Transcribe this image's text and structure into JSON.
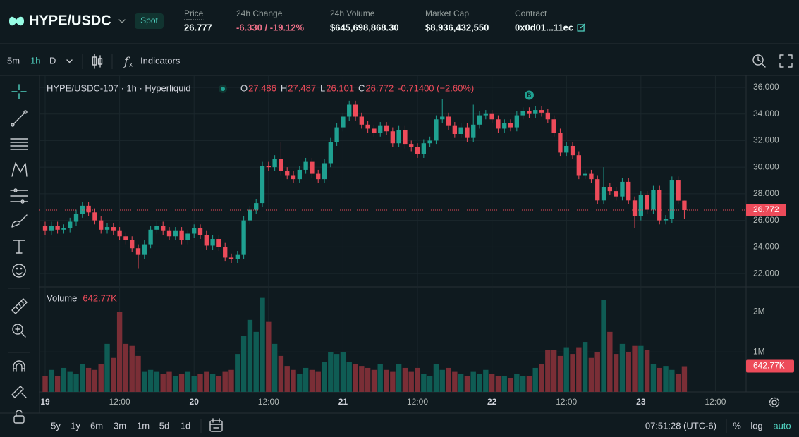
{
  "header": {
    "pair": "HYPE/USDC",
    "badge": "Spot",
    "stats": [
      {
        "label": "Price",
        "value": "26.777"
      },
      {
        "label": "24h Change",
        "value": "-6.330 / -19.12%"
      },
      {
        "label": "24h Volume",
        "value": "$645,698,868.30"
      },
      {
        "label": "Market Cap",
        "value": "$8,936,432,550"
      },
      {
        "label": "Contract",
        "value": "0x0d01...11ec"
      }
    ]
  },
  "toolbar": {
    "intervals": [
      "5m",
      "1h",
      "D"
    ],
    "indicators": "Indicators"
  },
  "bottom_bar": {
    "ranges": [
      "5y",
      "1y",
      "6m",
      "3m",
      "1m",
      "5d",
      "1d"
    ],
    "clock": "07:51:28 (UTC-6)",
    "options": [
      "%",
      "log",
      "auto"
    ]
  },
  "chart_data": {
    "type": "candlestick",
    "title": "HYPE/USDC-107 · 1h · Hyperliquid",
    "legend": {
      "labels": [
        "O",
        "H",
        "L",
        "C"
      ],
      "change": "-0.71400 (−2.60%)"
    },
    "up_color": "#1fa191",
    "down_color": "#ed4b5a",
    "grid": true,
    "last_price_line": true,
    "x": [
      0,
      1,
      2,
      3,
      4,
      5,
      6,
      7,
      8,
      9,
      10,
      11,
      12,
      13,
      14,
      15,
      16,
      17,
      18,
      19,
      20,
      21,
      22,
      23,
      24,
      25,
      26,
      27,
      28,
      29,
      30,
      31,
      32,
      33,
      34,
      35,
      36,
      37,
      38,
      39,
      40,
      41,
      42,
      43,
      44,
      45,
      46,
      47,
      48,
      49,
      50,
      51,
      52,
      53,
      54,
      55,
      56,
      57,
      58,
      59,
      60,
      61,
      62,
      63,
      64,
      65,
      66,
      67,
      68,
      69,
      70,
      71,
      72,
      73,
      74,
      75,
      76,
      77,
      78,
      79,
      80,
      81,
      82,
      83,
      84,
      85,
      86,
      87,
      88,
      89,
      90,
      91,
      92,
      93,
      94,
      95,
      96,
      97,
      98,
      99,
      100,
      101,
      102,
      103
    ],
    "open": [
      25.6,
      25.2,
      25.6,
      25.3,
      25.4,
      25.9,
      26.5,
      27.1,
      26.6,
      26.0,
      25.3,
      25.5,
      25.2,
      24.8,
      24.5,
      23.9,
      23.4,
      24.2,
      25.3,
      25.6,
      25.2,
      24.8,
      25.2,
      24.5,
      25.0,
      25.4,
      24.9,
      24.1,
      24.6,
      24.0,
      23.2,
      23.1,
      23.4,
      26.0,
      26.8,
      27.3,
      30.1,
      30.0,
      30.6,
      29.7,
      29.4,
      29.1,
      29.8,
      30.4,
      29.5,
      29.1,
      30.3,
      31.9,
      33.0,
      33.8,
      34.7,
      33.8,
      33.2,
      32.9,
      32.6,
      33.1,
      32.7,
      31.8,
      32.8,
      31.7,
      31.5,
      31.0,
      31.8,
      32.0,
      33.6,
      33.8,
      33.1,
      32.5,
      33.0,
      32.2,
      33.2,
      33.9,
      34.0,
      33.6,
      32.9,
      33.3,
      33.0,
      33.9,
      34.2,
      34.0,
      34.3,
      34.1,
      33.6,
      32.6,
      31.1,
      31.6,
      30.9,
      29.4,
      29.5,
      29.1,
      27.5,
      28.5,
      28.2,
      27.8,
      28.9,
      27.5,
      26.3,
      27.9,
      26.8,
      28.3,
      26.0,
      26.1,
      29.0,
      27.486
    ],
    "high": [
      25.9,
      25.9,
      25.9,
      25.7,
      26.2,
      26.8,
      27.4,
      27.4,
      26.9,
      26.3,
      25.8,
      25.8,
      25.5,
      25.1,
      24.8,
      24.2,
      24.5,
      25.6,
      25.9,
      25.9,
      25.5,
      25.5,
      25.5,
      25.3,
      25.7,
      25.7,
      25.2,
      24.9,
      24.9,
      24.3,
      23.5,
      23.7,
      26.3,
      27.1,
      27.6,
      30.4,
      30.4,
      30.9,
      31.9,
      30.0,
      29.7,
      30.1,
      30.7,
      30.7,
      29.8,
      30.6,
      32.2,
      33.3,
      34.1,
      35.0,
      35.0,
      34.1,
      33.5,
      33.2,
      33.4,
      33.4,
      33.0,
      33.1,
      33.1,
      32.0,
      31.8,
      32.1,
      32.3,
      33.9,
      35.1,
      34.1,
      33.4,
      33.3,
      33.3,
      34.7,
      34.2,
      34.3,
      34.3,
      33.9,
      33.6,
      33.6,
      34.2,
      34.5,
      34.5,
      34.6,
      34.6,
      34.4,
      33.9,
      32.9,
      31.9,
      31.9,
      31.2,
      29.8,
      29.8,
      29.4,
      30.0,
      28.8,
      28.5,
      29.2,
      29.2,
      27.8,
      28.2,
      28.2,
      28.6,
      28.6,
      26.4,
      29.3,
      29.3,
      27.487
    ],
    "low": [
      24.9,
      24.9,
      25.0,
      25.0,
      25.1,
      25.6,
      26.2,
      26.3,
      25.7,
      25.0,
      25.0,
      24.9,
      24.5,
      24.2,
      23.6,
      22.4,
      23.1,
      23.9,
      25.0,
      24.9,
      24.5,
      24.5,
      24.2,
      24.2,
      24.7,
      24.6,
      23.8,
      23.8,
      23.7,
      22.9,
      22.8,
      22.8,
      23.1,
      25.7,
      26.5,
      27.0,
      29.7,
      29.7,
      29.4,
      29.1,
      28.8,
      28.8,
      29.5,
      29.2,
      28.8,
      28.8,
      30.0,
      31.6,
      32.7,
      33.5,
      33.5,
      32.9,
      32.6,
      32.3,
      32.3,
      32.4,
      31.5,
      31.5,
      31.4,
      31.2,
      30.7,
      30.7,
      31.5,
      31.7,
      33.3,
      32.8,
      32.2,
      32.2,
      31.9,
      31.9,
      32.9,
      33.6,
      33.3,
      32.6,
      32.6,
      32.7,
      32.7,
      33.6,
      33.7,
      33.7,
      33.8,
      33.3,
      32.3,
      30.8,
      30.8,
      30.6,
      29.1,
      29.1,
      28.8,
      27.2,
      27.2,
      27.9,
      27.5,
      27.5,
      27.2,
      25.4,
      26.0,
      26.5,
      26.5,
      25.7,
      25.7,
      25.8,
      27.2,
      26.101
    ],
    "close": [
      25.2,
      25.6,
      25.3,
      25.4,
      25.9,
      26.5,
      27.1,
      26.6,
      26.0,
      25.3,
      25.5,
      25.2,
      24.8,
      24.5,
      23.9,
      23.4,
      24.2,
      25.3,
      25.6,
      25.2,
      24.8,
      25.2,
      24.5,
      25.0,
      25.4,
      24.9,
      24.1,
      24.6,
      24.0,
      23.2,
      23.1,
      23.4,
      26.0,
      26.8,
      27.3,
      30.1,
      30.0,
      30.6,
      29.7,
      29.4,
      29.1,
      29.8,
      30.4,
      29.5,
      29.1,
      30.3,
      31.9,
      33.0,
      33.8,
      34.7,
      33.8,
      33.2,
      32.9,
      32.6,
      33.1,
      32.7,
      31.8,
      32.8,
      31.7,
      31.5,
      31.0,
      31.8,
      32.0,
      33.6,
      33.8,
      33.1,
      32.5,
      33.0,
      32.2,
      33.2,
      33.9,
      34.0,
      33.6,
      32.9,
      33.3,
      33.0,
      33.9,
      34.2,
      34.0,
      34.3,
      34.1,
      33.6,
      32.6,
      31.1,
      31.6,
      30.9,
      29.4,
      29.5,
      29.1,
      27.5,
      28.5,
      28.2,
      27.8,
      28.9,
      27.5,
      26.3,
      27.9,
      26.8,
      28.3,
      26.0,
      26.1,
      29.0,
      27.486,
      26.772
    ],
    "xlim": [
      -0.91,
      112.95
    ],
    "xticks": [
      {
        "value": 0,
        "label": "19"
      },
      {
        "value": 12,
        "label": "12:00"
      },
      {
        "value": 24,
        "label": "20"
      },
      {
        "value": 36,
        "label": "12:00"
      },
      {
        "value": 48,
        "label": "21"
      },
      {
        "value": 60,
        "label": "12:00"
      },
      {
        "value": 72,
        "label": "22"
      },
      {
        "value": 84,
        "label": "12:00"
      },
      {
        "value": 96,
        "label": "23"
      },
      {
        "value": 108,
        "label": "12:00"
      }
    ],
    "ylim": [
      21.05,
      36.9
    ],
    "yticks": [
      {
        "value": 22,
        "label": "22.000"
      },
      {
        "value": 24,
        "label": "24.000"
      },
      {
        "value": 26,
        "label": "26.000"
      },
      {
        "value": 28,
        "label": "28.000"
      },
      {
        "value": 30,
        "label": "30.000"
      },
      {
        "value": 32,
        "label": "32.000"
      },
      {
        "value": 34,
        "label": "34.000"
      },
      {
        "value": 36,
        "label": "36.000"
      }
    ],
    "annotations": [
      {
        "x": 78,
        "label": "B"
      }
    ],
    "volume": {
      "label": "Volume",
      "up_color": "#0f5c54",
      "down_color": "#7a2e36",
      "values": [
        0.4,
        0.55,
        0.4,
        0.6,
        0.5,
        0.45,
        0.7,
        0.6,
        0.55,
        0.7,
        1.2,
        0.85,
        2.0,
        1.2,
        1.15,
        0.9,
        0.5,
        0.55,
        0.5,
        0.45,
        0.5,
        0.4,
        0.45,
        0.5,
        0.4,
        0.45,
        0.5,
        0.45,
        0.4,
        0.5,
        0.55,
        0.95,
        1.4,
        1.8,
        1.5,
        2.35,
        1.75,
        1.2,
        0.9,
        0.65,
        0.55,
        0.45,
        0.6,
        0.55,
        0.5,
        0.75,
        1.0,
        0.95,
        1.0,
        0.75,
        0.7,
        0.65,
        0.6,
        0.55,
        0.7,
        0.55,
        0.5,
        0.7,
        0.6,
        0.5,
        0.6,
        0.45,
        0.4,
        0.7,
        0.55,
        0.6,
        0.5,
        0.45,
        0.4,
        0.5,
        0.45,
        0.55,
        0.45,
        0.4,
        0.4,
        0.35,
        0.45,
        0.4,
        0.4,
        0.6,
        0.7,
        1.05,
        1.05,
        0.9,
        1.1,
        0.95,
        1.1,
        1.25,
        0.85,
        1.0,
        2.3,
        1.5,
        0.95,
        1.2,
        1.0,
        1.15,
        1.15,
        1.05,
        0.7,
        0.6,
        0.65,
        0.55,
        0.45,
        0.64277
      ],
      "value_label": "642.77K",
      "ylim": [
        0,
        2.625
      ],
      "yticks": [
        {
          "value": 1,
          "label": "1M"
        },
        {
          "value": 2,
          "label": "2M"
        }
      ]
    }
  }
}
